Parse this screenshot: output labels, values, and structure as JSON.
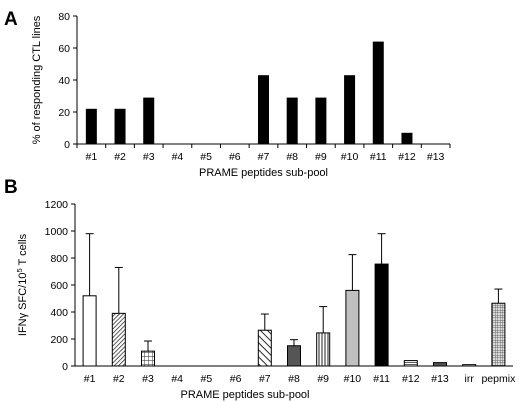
{
  "chart_data": [
    {
      "panel": "A",
      "type": "bar",
      "categories": [
        "#1",
        "#2",
        "#3",
        "#4",
        "#5",
        "#6",
        "#7",
        "#8",
        "#9",
        "#10",
        "#11",
        "#12",
        "#13"
      ],
      "values": [
        22,
        22,
        29,
        0,
        0,
        0,
        43,
        29,
        29,
        43,
        64,
        7,
        0
      ],
      "xlabel": "PRAME peptides sub-pool",
      "ylabel": "% of responding CTL lines",
      "ylim": [
        0,
        80
      ],
      "yticks": [
        0,
        20,
        40,
        60,
        80
      ],
      "bar_color": "#000000",
      "grid": false
    },
    {
      "panel": "B",
      "type": "bar",
      "categories": [
        "#1",
        "#2",
        "#3",
        "#4",
        "#5",
        "#6",
        "#7",
        "#8",
        "#9",
        "#10",
        "#11",
        "#12",
        "#13",
        "irr",
        "pepmix"
      ],
      "values": [
        520,
        390,
        110,
        0,
        0,
        0,
        265,
        150,
        245,
        560,
        755,
        40,
        25,
        10,
        465
      ],
      "error_upper": [
        980,
        730,
        185,
        0,
        0,
        0,
        385,
        195,
        440,
        825,
        980,
        0,
        0,
        0,
        570
      ],
      "fills": [
        "white",
        "dense-hatch",
        "grid",
        "none",
        "none",
        "none",
        "diagonal",
        "dark-gray",
        "vertical-lines",
        "light-gray",
        "black",
        "horizontal-lines",
        "dark-gray",
        "white",
        "fine-grid"
      ],
      "xlabel": "PRAME peptides sub-pool",
      "ylabel_parts": [
        "IFNγ SFC/10",
        "5",
        " T cells"
      ],
      "ylim": [
        0,
        1200
      ],
      "yticks": [
        0,
        200,
        400,
        600,
        800,
        1000,
        1200
      ],
      "grid": false
    }
  ],
  "panel_labels": {
    "a": "A",
    "b": "B"
  }
}
